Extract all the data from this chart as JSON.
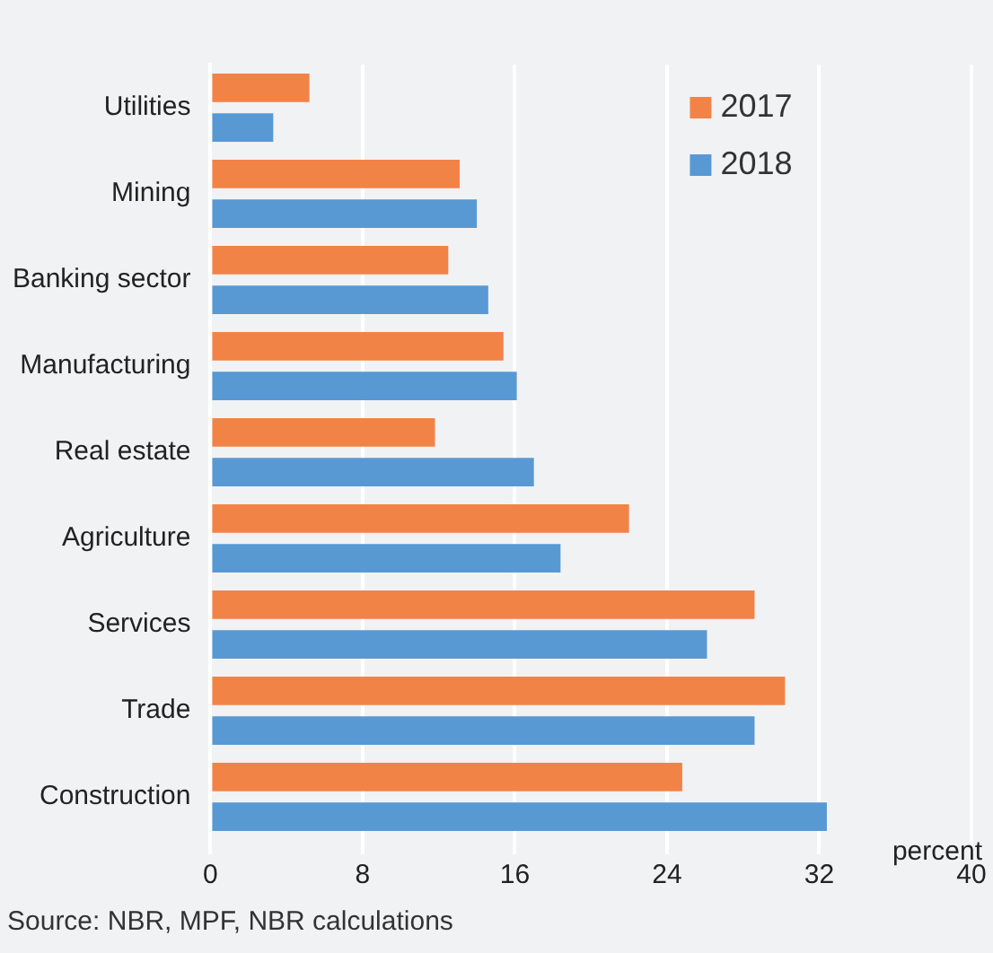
{
  "chart_data": {
    "type": "bar",
    "orientation": "horizontal",
    "categories": [
      "Utilities",
      "Mining",
      "Banking sector",
      "Manufacturing",
      "Real estate",
      "Agriculture",
      "Services",
      "Trade",
      "Construction"
    ],
    "series": [
      {
        "name": "2017",
        "color": "#f28347",
        "values": [
          5.2,
          13.1,
          12.5,
          15.4,
          11.8,
          22.0,
          28.6,
          30.2,
          24.8
        ]
      },
      {
        "name": "2018",
        "color": "#5899d4",
        "values": [
          3.3,
          14.0,
          14.6,
          16.1,
          17.0,
          18.4,
          26.1,
          28.6,
          32.4
        ]
      }
    ],
    "xlim": [
      0,
      40
    ],
    "xticks": [
      0,
      8,
      16,
      24,
      32,
      40
    ],
    "xlabel": "percent",
    "grid": "x",
    "legend": "top right",
    "annotations": [
      "Source: NBR, MPF, NBR calculations"
    ]
  }
}
